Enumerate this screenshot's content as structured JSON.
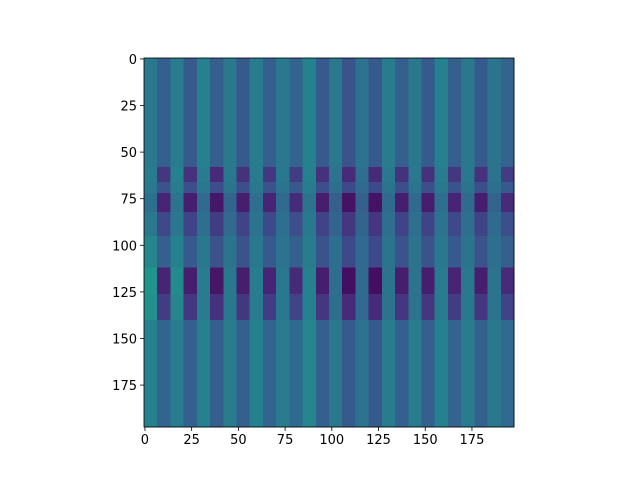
{
  "chart_data": {
    "type": "heatmap",
    "colormap": "viridis",
    "xlim": [
      -0.5,
      197.5
    ],
    "ylim": [
      197.5,
      -0.5
    ],
    "xticks": [
      0,
      25,
      50,
      75,
      100,
      125,
      150,
      175
    ],
    "yticks": [
      0,
      25,
      50,
      75,
      100,
      125,
      150,
      175
    ],
    "y_edges": [
      -0.5,
      58,
      66,
      72,
      82,
      95,
      112,
      126,
      140,
      197.5
    ],
    "values": [
      [
        0.4,
        0.3,
        0.42,
        0.28,
        0.44,
        0.3,
        0.4,
        0.28,
        0.42,
        0.3,
        0.4,
        0.32,
        0.44,
        0.28,
        0.4,
        0.26,
        0.38,
        0.28,
        0.42,
        0.3,
        0.4,
        0.28,
        0.44,
        0.3,
        0.4,
        0.28,
        0.38,
        0.32
      ],
      [
        0.42,
        0.16,
        0.44,
        0.14,
        0.42,
        0.12,
        0.4,
        0.14,
        0.42,
        0.16,
        0.4,
        0.18,
        0.44,
        0.14,
        0.38,
        0.12,
        0.36,
        0.12,
        0.4,
        0.14,
        0.4,
        0.14,
        0.42,
        0.16,
        0.4,
        0.14,
        0.38,
        0.18
      ],
      [
        0.4,
        0.26,
        0.42,
        0.24,
        0.4,
        0.24,
        0.38,
        0.24,
        0.4,
        0.26,
        0.38,
        0.28,
        0.42,
        0.24,
        0.36,
        0.22,
        0.34,
        0.22,
        0.38,
        0.24,
        0.38,
        0.24,
        0.4,
        0.26,
        0.38,
        0.24,
        0.36,
        0.28
      ],
      [
        0.36,
        0.1,
        0.38,
        0.08,
        0.34,
        0.06,
        0.32,
        0.08,
        0.36,
        0.1,
        0.34,
        0.12,
        0.38,
        0.08,
        0.3,
        0.05,
        0.3,
        0.05,
        0.34,
        0.08,
        0.34,
        0.08,
        0.36,
        0.1,
        0.34,
        0.08,
        0.32,
        0.12
      ],
      [
        0.4,
        0.22,
        0.4,
        0.2,
        0.36,
        0.18,
        0.34,
        0.2,
        0.38,
        0.22,
        0.36,
        0.24,
        0.4,
        0.2,
        0.32,
        0.16,
        0.32,
        0.16,
        0.36,
        0.2,
        0.36,
        0.2,
        0.38,
        0.22,
        0.36,
        0.2,
        0.34,
        0.24
      ],
      [
        0.46,
        0.3,
        0.44,
        0.28,
        0.4,
        0.26,
        0.38,
        0.26,
        0.4,
        0.28,
        0.38,
        0.3,
        0.42,
        0.26,
        0.36,
        0.22,
        0.34,
        0.22,
        0.38,
        0.26,
        0.38,
        0.26,
        0.4,
        0.28,
        0.38,
        0.26,
        0.36,
        0.3
      ],
      [
        0.52,
        0.1,
        0.48,
        0.08,
        0.42,
        0.06,
        0.4,
        0.08,
        0.42,
        0.1,
        0.4,
        0.12,
        0.44,
        0.08,
        0.36,
        0.04,
        0.34,
        0.04,
        0.38,
        0.08,
        0.38,
        0.08,
        0.42,
        0.1,
        0.4,
        0.08,
        0.38,
        0.12
      ],
      [
        0.5,
        0.18,
        0.46,
        0.16,
        0.42,
        0.14,
        0.4,
        0.16,
        0.42,
        0.18,
        0.4,
        0.2,
        0.44,
        0.16,
        0.36,
        0.12,
        0.34,
        0.12,
        0.38,
        0.16,
        0.38,
        0.16,
        0.42,
        0.18,
        0.4,
        0.16,
        0.38,
        0.2
      ],
      [
        0.44,
        0.32,
        0.42,
        0.3,
        0.44,
        0.3,
        0.42,
        0.3,
        0.44,
        0.32,
        0.42,
        0.34,
        0.46,
        0.3,
        0.4,
        0.28,
        0.38,
        0.28,
        0.42,
        0.3,
        0.42,
        0.3,
        0.44,
        0.32,
        0.42,
        0.3,
        0.4,
        0.34
      ]
    ]
  }
}
